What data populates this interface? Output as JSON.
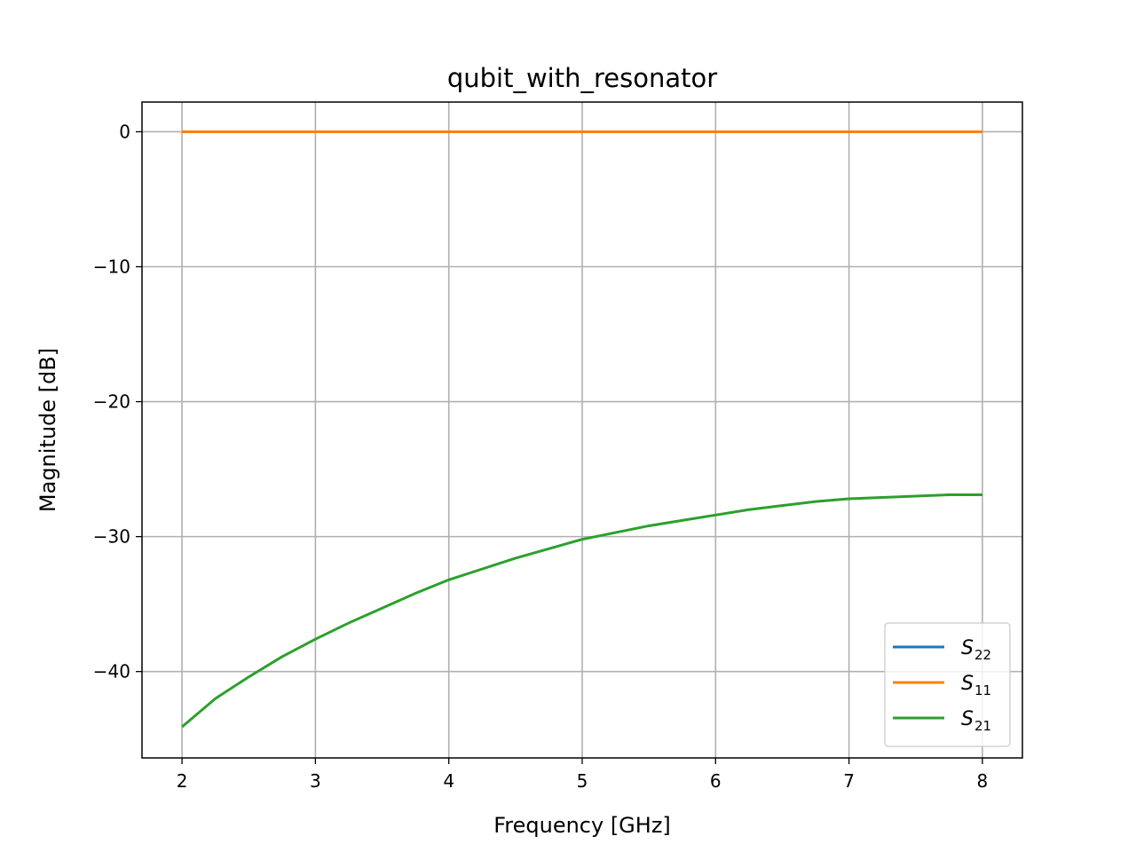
{
  "chart_data": {
    "type": "line",
    "title": "qubit_with_resonator",
    "xlabel": "Frequency [GHz]",
    "ylabel": "Magnitude [dB]",
    "xlim": [
      1.7,
      8.3
    ],
    "ylim": [
      -46.4,
      2.2
    ],
    "xticks": [
      2,
      3,
      4,
      5,
      6,
      7,
      8
    ],
    "yticks": [
      0,
      -10,
      -20,
      -30,
      -40
    ],
    "grid": true,
    "legend_position": "lower-right",
    "series": [
      {
        "name": "S",
        "subscript": "22",
        "color": "#1f77b4",
        "x": [
          2,
          3,
          4,
          5,
          6,
          7,
          8
        ],
        "y": [
          0,
          0,
          0,
          0,
          0,
          0,
          0
        ]
      },
      {
        "name": "S",
        "subscript": "11",
        "color": "#ff7f0e",
        "x": [
          2,
          3,
          4,
          5,
          6,
          7,
          8
        ],
        "y": [
          0,
          0,
          0,
          0,
          0,
          0,
          0
        ]
      },
      {
        "name": "S",
        "subscript": "21",
        "color": "#2ca02c",
        "x": [
          2,
          2.25,
          2.5,
          2.75,
          3,
          3.25,
          3.5,
          3.75,
          4,
          4.25,
          4.5,
          4.75,
          5,
          5.25,
          5.5,
          5.75,
          6,
          6.25,
          6.5,
          6.75,
          7,
          7.25,
          7.5,
          7.75,
          8
        ],
        "y": [
          -44.1,
          -42.0,
          -40.4,
          -38.9,
          -37.6,
          -36.4,
          -35.3,
          -34.2,
          -33.2,
          -32.4,
          -31.6,
          -30.9,
          -30.2,
          -29.7,
          -29.2,
          -28.8,
          -28.4,
          -28.0,
          -27.7,
          -27.4,
          -27.2,
          -27.1,
          -27.0,
          -26.9,
          -26.9
        ]
      }
    ]
  }
}
